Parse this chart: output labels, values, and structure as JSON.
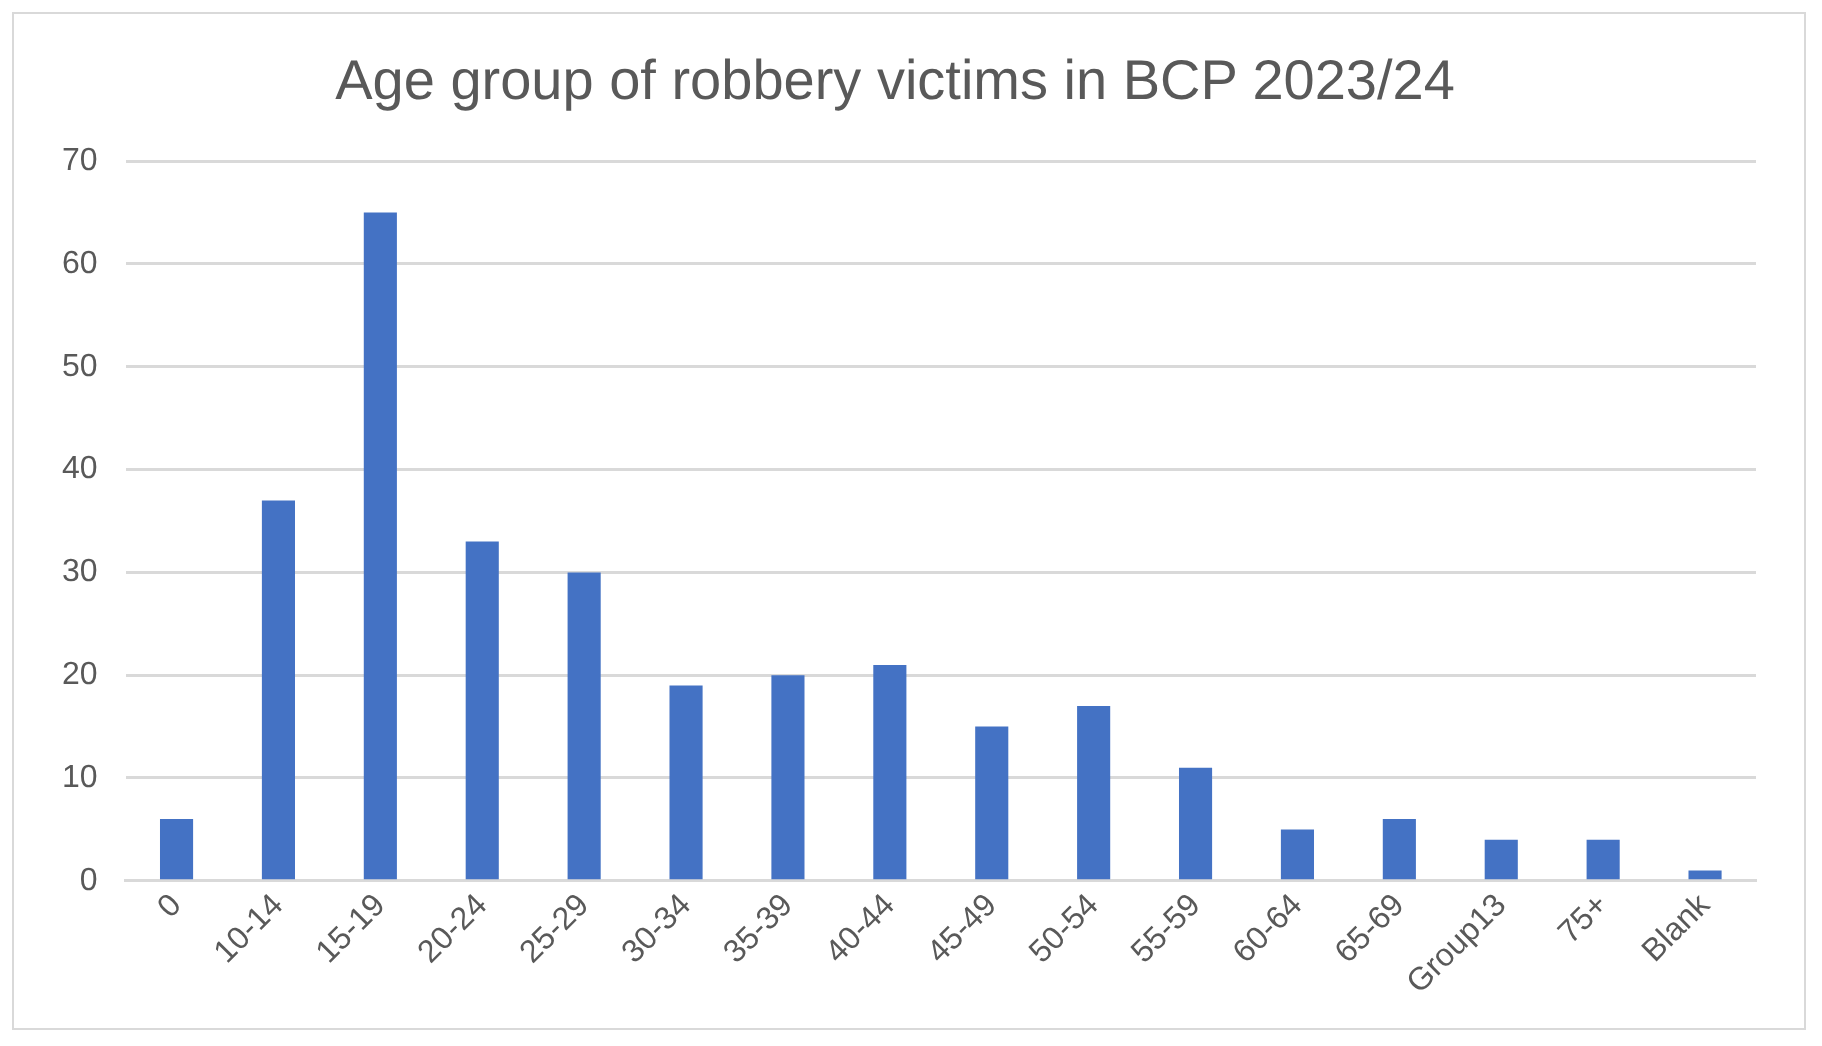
{
  "chart_data": {
    "type": "bar",
    "title": "Age group of robbery victims in BCP 2023/24",
    "categories": [
      "0",
      "10-14",
      "15-19",
      "20-24",
      "25-29",
      "30-34",
      "35-39",
      "40-44",
      "45-49",
      "50-54",
      "55-59",
      "60-64",
      "65-69",
      "Group13",
      "75+",
      "Blank"
    ],
    "values": [
      6,
      37,
      65,
      33,
      30,
      19,
      20,
      21,
      15,
      17,
      11,
      5,
      6,
      4,
      4,
      1
    ],
    "color": "#4472c4",
    "ylim": [
      0,
      70
    ],
    "yticks": [
      0,
      10,
      20,
      30,
      40,
      50,
      60,
      70
    ],
    "grid": "y"
  }
}
